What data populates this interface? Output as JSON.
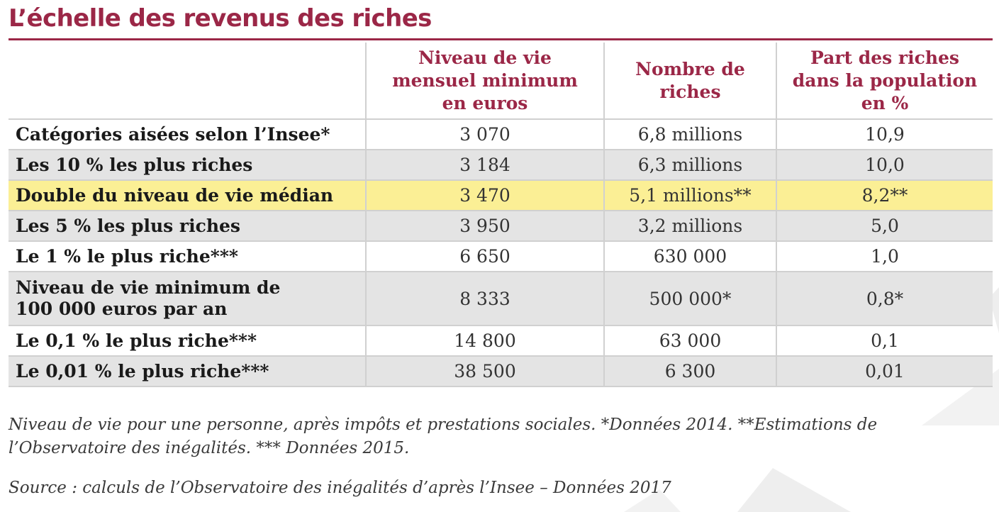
{
  "title": "L’échelle des revenus des riches",
  "table": {
    "headers": [
      {
        "lines": []
      },
      {
        "lines": [
          "Niveau de vie",
          "mensuel minimum",
          "en euros"
        ]
      },
      {
        "lines": [
          "Nombre de",
          "riches"
        ]
      },
      {
        "lines": [
          "Part des riches",
          "dans la population",
          "en %"
        ]
      }
    ],
    "rows": [
      {
        "label": [
          "Catégories aisées selon l’Insee*"
        ],
        "minimum": "3 070",
        "count": "6,8 millions",
        "share": "10,9",
        "highlight": false
      },
      {
        "label": [
          "Les 10 % les plus riches"
        ],
        "minimum": "3 184",
        "count": "6,3 millions",
        "share": "10,0",
        "highlight": false
      },
      {
        "label": [
          "Double du niveau de vie médian"
        ],
        "minimum": "3 470",
        "count": "5,1 millions**",
        "share": "8,2**",
        "highlight": true
      },
      {
        "label": [
          "Les 5 % les plus riches"
        ],
        "minimum": "3 950",
        "count": "3,2 millions",
        "share": "5,0",
        "highlight": false
      },
      {
        "label": [
          "Le 1 % le plus riche***"
        ],
        "minimum": "6 650",
        "count": "630 000",
        "share": "1,0",
        "highlight": false
      },
      {
        "label": [
          "Niveau de vie minimum de",
          "100 000 euros par an"
        ],
        "minimum": "8 333",
        "count": "500 000*",
        "share": "0,8*",
        "highlight": false
      },
      {
        "label": [
          "Le 0,1 % le plus riche***"
        ],
        "minimum": "14 800",
        "count": "63 000",
        "share": "0,1",
        "highlight": false
      },
      {
        "label": [
          "Le 0,01 % le plus riche***"
        ],
        "minimum": "38 500",
        "count": "6 300",
        "share": "0,01",
        "highlight": false
      }
    ]
  },
  "note": {
    "lines": [
      "Niveau de vie pour une personne, après impôts et prestations sociales. *Données 2014. **Estimations de",
      "l’Observatoire des inégalités. *** Données 2015."
    ]
  },
  "source": "Source : calculs de l’Observatoire des inégalités d’après l’Insee – Données 2017",
  "colors": {
    "accent": "#9b2747",
    "row_alt": "#e4e4e4",
    "highlight": "#fbef95"
  }
}
